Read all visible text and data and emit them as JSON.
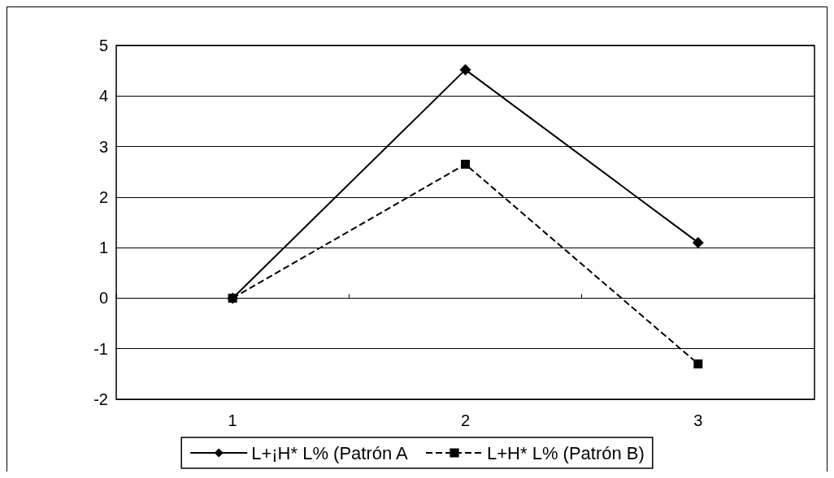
{
  "chart_data": {
    "type": "line",
    "categories": [
      "1",
      "2",
      "3"
    ],
    "series": [
      {
        "name": "L+¡H* L% (Patrón A",
        "color": "#000000",
        "values": [
          0,
          4.52,
          1.1
        ],
        "marker": "diamond",
        "line_style": "solid"
      },
      {
        "name": "L+H* L% (Patrón B)",
        "color": "#000000",
        "values": [
          0,
          2.65,
          -1.3
        ],
        "marker": "square",
        "line_style": "dashed"
      }
    ],
    "ylim": [
      -2,
      5
    ],
    "yticks": [
      -2,
      -1,
      0,
      1,
      2,
      3,
      4,
      5
    ],
    "grid": "y",
    "legend": "bottom"
  }
}
